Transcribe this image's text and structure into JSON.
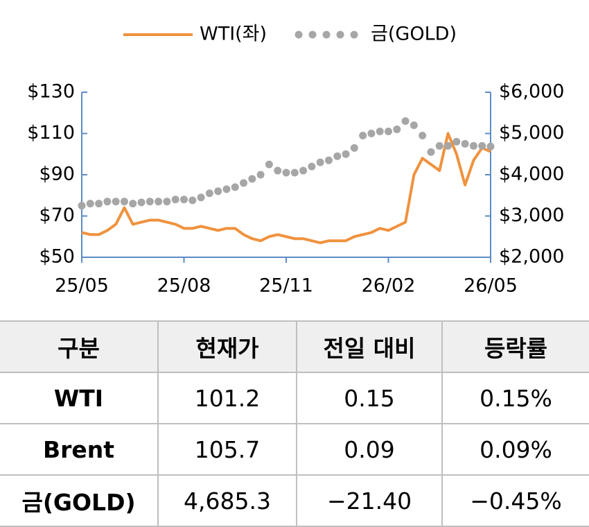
{
  "chart_data": {
    "type": "line",
    "legend": "top",
    "categories": [
      "25/05",
      null,
      null,
      null,
      null,
      null,
      null,
      null,
      null,
      null,
      null,
      null,
      "25/08",
      null,
      null,
      null,
      null,
      null,
      null,
      null,
      null,
      null,
      null,
      null,
      "25/11",
      null,
      null,
      null,
      null,
      null,
      null,
      null,
      null,
      null,
      null,
      null,
      "26/02",
      null,
      null,
      null,
      null,
      null,
      null,
      null,
      null,
      null,
      null,
      null,
      "26/05"
    ],
    "series": [
      {
        "name": "WTI(좌)",
        "color": "#f0923e",
        "style": "line",
        "values": [
          62,
          61,
          61,
          63,
          66,
          74,
          66,
          67,
          68,
          68,
          67,
          66,
          64,
          64,
          65,
          64,
          63,
          64,
          64,
          61,
          59,
          58,
          60,
          61,
          60,
          59,
          59,
          58,
          57,
          58,
          58,
          58,
          60,
          61,
          62,
          64,
          63,
          65,
          67,
          90,
          98,
          95,
          92,
          110,
          100,
          85,
          97,
          103,
          101.2
        ]
      },
      {
        "name": "금(GOLD)",
        "color": "#a6a6a6",
        "style": "dots",
        "axis": "y2",
        "values": [
          3250,
          3300,
          3300,
          3350,
          3350,
          3350,
          3300,
          3330,
          3350,
          3350,
          3350,
          3400,
          3400,
          3380,
          3450,
          3550,
          3600,
          3650,
          3700,
          3800,
          3900,
          4000,
          4250,
          4100,
          4050,
          4050,
          4100,
          4200,
          4300,
          4350,
          4450,
          4500,
          4650,
          4950,
          5000,
          5050,
          5050,
          5100,
          5300,
          5200,
          4950,
          4550,
          4700,
          4700,
          4800,
          4750,
          4700,
          4700,
          4685.3
        ]
      }
    ],
    "ylim": [
      50,
      130
    ],
    "yticks": [
      {
        "value": 50,
        "label": "$50"
      },
      {
        "value": 70,
        "label": "$70"
      },
      {
        "value": 90,
        "label": "$90"
      },
      {
        "value": 110,
        "label": "$110"
      },
      {
        "value": 130,
        "label": "$130"
      }
    ],
    "y2lim": [
      2000,
      6000
    ],
    "y2ticks": [
      {
        "value": 2000,
        "label": "$2,000"
      },
      {
        "value": 3000,
        "label": "$3,000"
      },
      {
        "value": 4000,
        "label": "$4,000"
      },
      {
        "value": 5000,
        "label": "$5,000"
      },
      {
        "value": 6000,
        "label": "$6,000"
      }
    ],
    "axis_color": "#5b8bc5"
  },
  "table": {
    "header": [
      "구분",
      "현재가",
      "전일 대비",
      "등락률"
    ],
    "rows": [
      [
        "WTI",
        "101.2",
        "0.15",
        "0.15%"
      ],
      [
        "Brent",
        "105.7",
        "0.09",
        "0.09%"
      ],
      [
        "금(GOLD)",
        "4,685.3",
        "−21.40",
        "−0.45%"
      ]
    ]
  }
}
